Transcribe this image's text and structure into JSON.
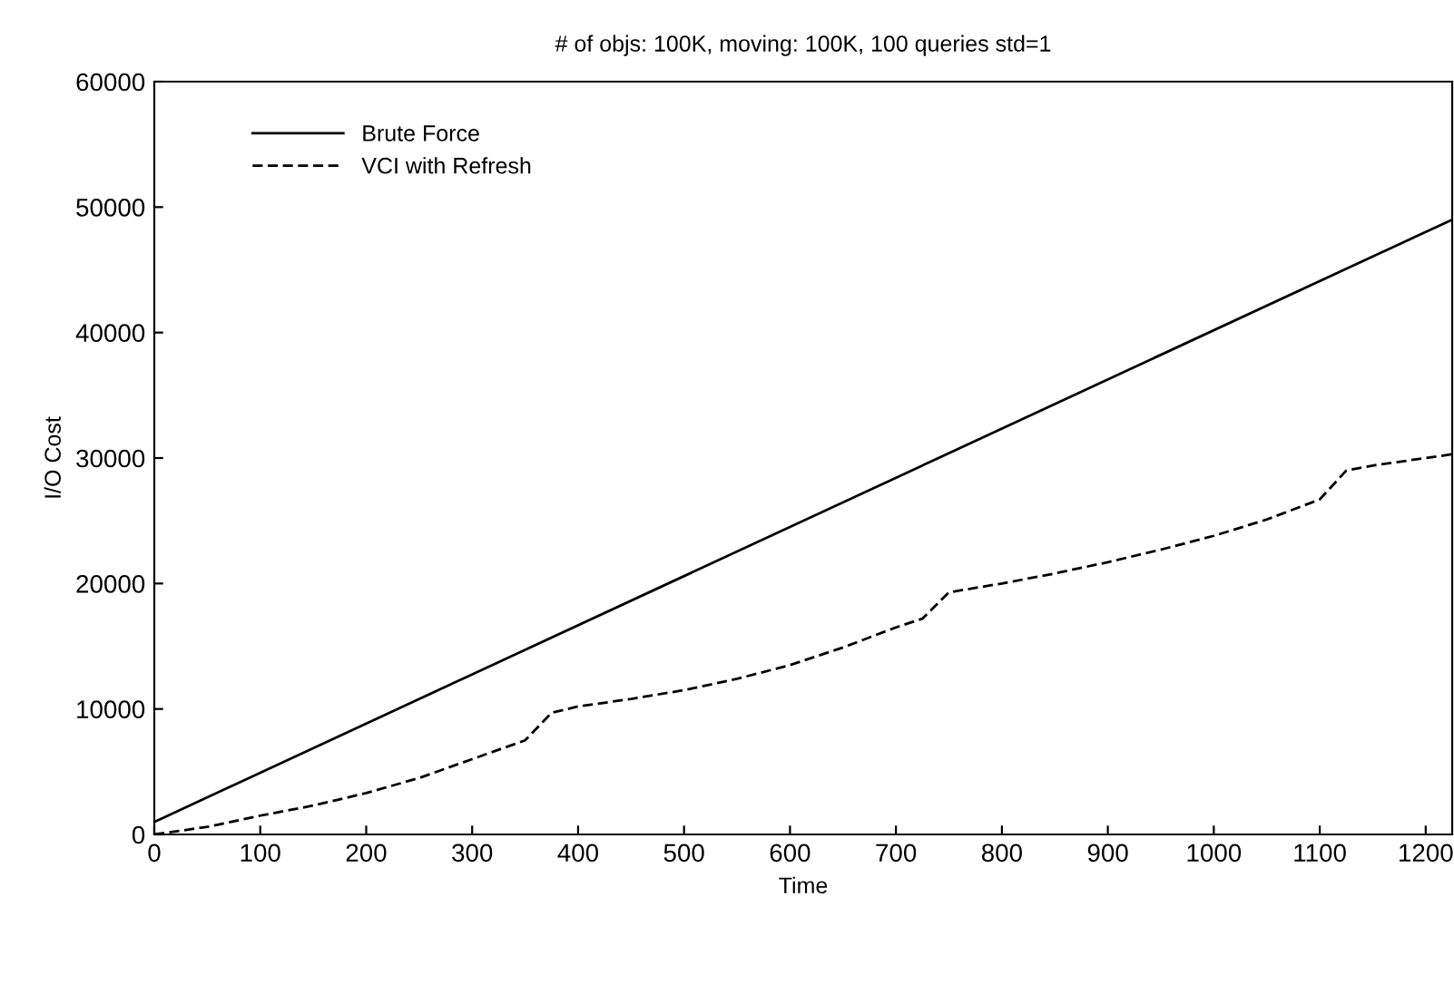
{
  "chart_data": {
    "type": "line",
    "title": "# of objs: 100K, moving: 100K, 100 queries std=1",
    "xlabel": "Time",
    "ylabel": "I/O Cost",
    "xlim": [
      0,
      1225
    ],
    "xticks": [
      0,
      100,
      200,
      300,
      400,
      500,
      600,
      700,
      800,
      900,
      1000,
      1100,
      1200
    ],
    "ylim": [
      0,
      60000
    ],
    "yticks": [
      0,
      10000,
      20000,
      30000,
      40000,
      50000,
      60000
    ],
    "grid": false,
    "legend": "top left",
    "marker": "none",
    "series": [
      {
        "name": "Brute Force",
        "color": "#000000",
        "line_style": "solid",
        "x": [
          0,
          1225
        ],
        "values": [
          1000,
          49000
        ]
      },
      {
        "name": "VCI with Refresh",
        "color": "#000000",
        "line_style": "dashed",
        "x": [
          0,
          50,
          100,
          150,
          200,
          250,
          300,
          350,
          375,
          400,
          450,
          500,
          550,
          600,
          650,
          700,
          725,
          750,
          800,
          850,
          900,
          950,
          1000,
          1050,
          1100,
          1125,
          1150,
          1200,
          1225
        ],
        "values": [
          0,
          600,
          1500,
          2300,
          3300,
          4500,
          6000,
          7500,
          9700,
          10200,
          10800,
          11500,
          12400,
          13500,
          14900,
          16500,
          17200,
          19300,
          20000,
          20800,
          21700,
          22700,
          23800,
          25100,
          26700,
          29000,
          29400,
          30000,
          30300
        ]
      }
    ]
  }
}
